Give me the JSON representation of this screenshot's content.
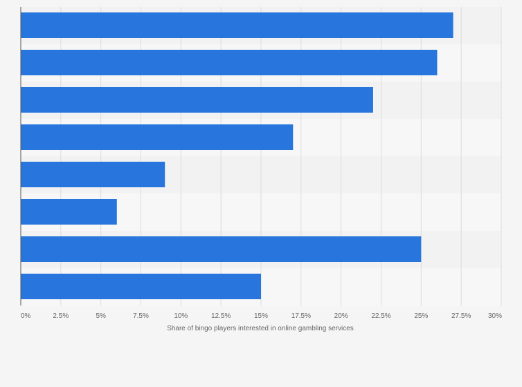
{
  "chart_data": {
    "type": "bar",
    "orientation": "horizontal",
    "categories": [
      "",
      "",
      "",
      "",
      "",
      "",
      "",
      ""
    ],
    "values": [
      27,
      26,
      22,
      17,
      9,
      6,
      25,
      15
    ],
    "xlim": [
      0,
      30
    ],
    "xticks": [
      0,
      2.5,
      5,
      7.5,
      10,
      12.5,
      15,
      17.5,
      20,
      22.5,
      25,
      27.5,
      30
    ],
    "tick_labels": [
      "0%",
      "2.5%",
      "5%",
      "7.5%",
      "10%",
      "12.5%",
      "15%",
      "17.5%",
      "20%",
      "22.5%",
      "25%",
      "27.5%",
      "30%"
    ],
    "xlabel": "Share of bingo players interested in online gambling services",
    "ylabel": "",
    "title": "",
    "grid": true,
    "legend": "none",
    "bar_color": "#2876dd"
  }
}
